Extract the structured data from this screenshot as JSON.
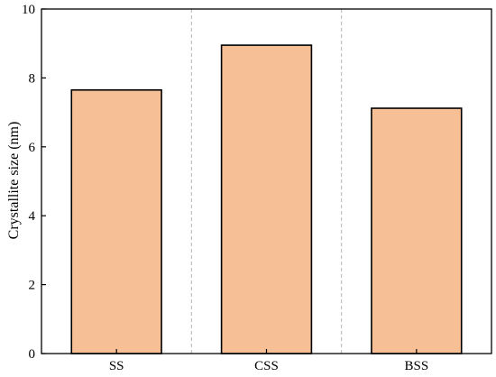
{
  "colors": {
    "bar_fill": "#f7bf95",
    "bar_stroke": "#000000",
    "divider": "#b5b5b5",
    "axis": "#000000"
  },
  "chart_data": {
    "type": "bar",
    "categories": [
      "SS",
      "CSS",
      "BSS"
    ],
    "values": [
      7.65,
      8.95,
      7.12
    ],
    "title": "",
    "xlabel": "",
    "ylabel": "Crystallite size (nm)",
    "ylim": [
      0,
      10
    ],
    "yticks": [
      0,
      2,
      4,
      6,
      8,
      10
    ],
    "grid": false,
    "category_dividers": true,
    "legend": "none"
  }
}
